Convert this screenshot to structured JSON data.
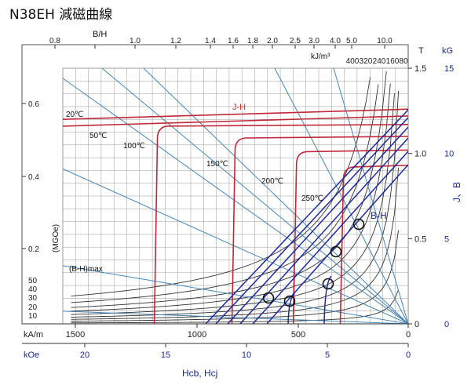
{
  "title": "N38EH 減磁曲線",
  "chart_data": {
    "type": "line",
    "title": "N38EH 減磁曲線",
    "bh_axis_label": "B/H",
    "bh_ticks": [
      "0.8",
      "1.0",
      "1.2",
      "1.4",
      "1.6",
      "1.8",
      "2.0",
      "2.5",
      "3.0",
      "4.0",
      "5.0",
      "10.0"
    ],
    "energy_unit": "kJ/m³",
    "energy_ticks": [
      "400",
      "320",
      "240",
      "160",
      "80"
    ],
    "y_right_T_label": "T",
    "y_right_T_ticks": [
      "1.5",
      "1.0",
      "0.5",
      "0"
    ],
    "y_right_kG_label": "kG",
    "y_right_kG_ticks": [
      "15",
      "10",
      "5",
      "0"
    ],
    "y_right_axis_label": "J、B",
    "y_left_label": "(MGOe)",
    "y_left_ticks": [
      "0.6",
      "0.4",
      "0.2"
    ],
    "mgoe_ticks": [
      "50",
      "40",
      "30",
      "20",
      "10"
    ],
    "bhmax_label": "(B-H)max",
    "x_kAm_label": "kA/m",
    "x_kAm_ticks": [
      "1500",
      "1000",
      "500",
      "0"
    ],
    "x_kOe_label": "kOe",
    "x_kOe_ticks": [
      "20",
      "15",
      "10",
      "5",
      "0"
    ],
    "x_label": "Hcb, Hcj",
    "jh_label": "J-H",
    "bh_label": "B-H",
    "xlim_kOe": [
      21,
      0
    ],
    "ylim_T": [
      0,
      1.5
    ],
    "temperatures": [
      "20℃",
      "50℃",
      "100℃",
      "150℃",
      "200℃",
      "250℃"
    ],
    "j_h_series": [
      {
        "name": "20℃",
        "Br_T": 1.26,
        "Hcj_kOe": 21.0
      },
      {
        "name": "50℃",
        "Br_T": 1.22,
        "Hcj_kOe": 21.0
      },
      {
        "name": "100℃",
        "Br_T": 1.17,
        "Hcj_kOe": 15.7
      },
      {
        "name": "150℃",
        "Br_T": 1.1,
        "Hcj_kOe": 10.9
      },
      {
        "name": "200℃",
        "Br_T": 1.02,
        "Hcj_kOe": 7.1
      },
      {
        "name": "250℃",
        "Br_T": 0.93,
        "Hcj_kOe": 4.2
      }
    ],
    "b_h_series": [
      {
        "name": "20℃",
        "Br_T": 1.26,
        "Hcb_kOe": 12.3
      },
      {
        "name": "50℃",
        "Br_T": 1.22,
        "Hcb_kOe": 11.9
      },
      {
        "name": "100℃",
        "Br_T": 1.17,
        "Hcb_kOe": 11.3
      },
      {
        "name": "150℃",
        "Br_T": 1.1,
        "Hcb_kOe": 10.6
      },
      {
        "name": "200℃",
        "Br_T": 1.02,
        "Hcb_kOe": 7.1
      },
      {
        "name": "250℃",
        "Br_T": 0.93,
        "Hcb_kOe": 4.2
      }
    ],
    "knee_points": [
      {
        "H_kOe": 7.8,
        "B_T": 0.13
      },
      {
        "H_kOe": 6.2,
        "B_T": 0.11
      },
      {
        "H_kOe": 4.2,
        "B_T": 0.2
      },
      {
        "H_kOe": 3.8,
        "B_T": 0.34
      },
      {
        "H_kOe": 2.7,
        "B_T": 0.44
      }
    ],
    "colors": {
      "j_h": "#c0273a",
      "b_h": "#1f2a9a",
      "load_lines": "#4a86b4",
      "energy": "#333333",
      "grid": "#999999",
      "axis_blue": "#1a2a8a"
    }
  }
}
